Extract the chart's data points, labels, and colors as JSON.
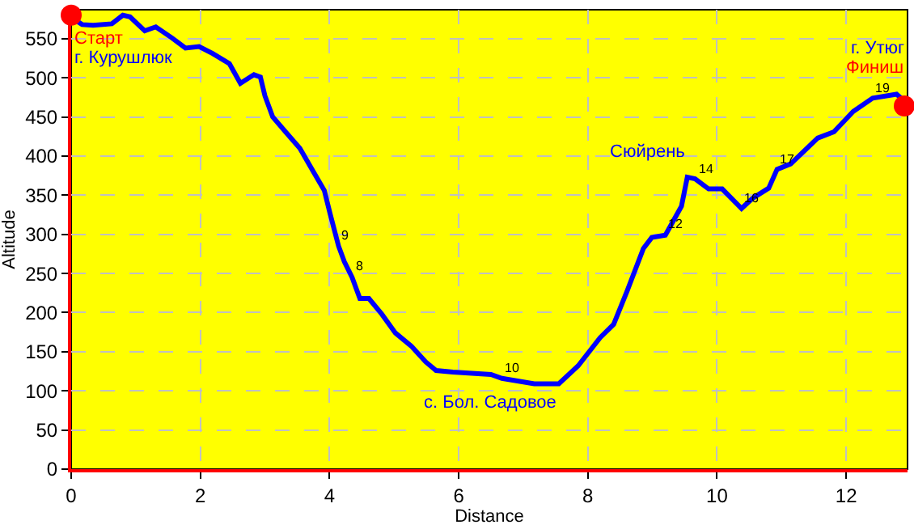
{
  "chart_data": {
    "type": "line",
    "xlabel": "Distance",
    "ylabel": "Altitude",
    "xlim": [
      0,
      12.95
    ],
    "xticks": [
      0,
      2,
      4,
      6,
      8,
      10,
      12
    ],
    "ylim": [
      0,
      587
    ],
    "yticks": [
      0,
      50,
      100,
      150,
      200,
      250,
      300,
      350,
      400,
      450,
      500,
      550
    ],
    "grid": true,
    "legend": false,
    "series": [
      {
        "color": "#0000ff",
        "marker": "none",
        "x": [
          0.04,
          0.17,
          0.34,
          0.63,
          0.8,
          0.91,
          1.14,
          1.31,
          1.56,
          1.77,
          1.98,
          2.19,
          2.45,
          2.62,
          2.83,
          2.93,
          3.0,
          3.12,
          3.33,
          3.54,
          3.75,
          3.92,
          4.01,
          4.14,
          4.23,
          4.35,
          4.47,
          4.61,
          4.81,
          5.02,
          5.27,
          5.49,
          5.65,
          5.91,
          6.5,
          6.67,
          7.17,
          7.55,
          7.85,
          8.19,
          8.4,
          8.61,
          8.86,
          8.99,
          9.2,
          9.45,
          9.54,
          9.66,
          9.87,
          10.08,
          10.38,
          10.55,
          10.8,
          10.93,
          11.14,
          11.56,
          11.81,
          12.11,
          12.41,
          12.78,
          12.85
        ],
        "values": [
          575,
          568,
          567,
          569,
          580,
          578,
          560,
          565,
          551,
          538,
          540,
          531,
          518,
          493,
          504,
          501,
          477,
          450,
          430,
          410,
          380,
          356,
          326,
          285,
          265,
          245,
          218,
          218,
          198,
          174,
          157,
          137,
          126,
          124,
          121,
          116,
          109,
          109,
          132,
          168,
          185,
          228,
          282,
          296,
          299,
          336,
          373,
          371,
          358,
          358,
          333,
          346,
          359,
          383,
          390,
          423,
          431,
          457,
          474,
          479,
          474
        ]
      },
      {
        "type": "scatter",
        "color": "#ff0000",
        "marker": "circle",
        "x": [
          0,
          12.9
        ],
        "values": [
          580,
          464
        ]
      }
    ],
    "annotations": [
      "Старт",
      "г. Курушлюк",
      "с. Бол. Садовое",
      "Сюйрень",
      "г. Утюг",
      "Финиш",
      {
        "text": "8",
        "x": 4.35,
        "y": 245
      },
      {
        "text": "9",
        "x": 4.14,
        "y": 285
      },
      {
        "text": "10",
        "x": 6.67,
        "y": 116
      },
      {
        "text": "12",
        "x": 9.2,
        "y": 299
      },
      {
        "text": "14",
        "x": 9.66,
        "y": 371
      },
      {
        "text": "16",
        "x": 10.38,
        "y": 333
      },
      {
        "text": "17",
        "x": 10.93,
        "y": 383
      },
      {
        "text": "19",
        "x": 12.41,
        "y": 474
      }
    ]
  }
}
